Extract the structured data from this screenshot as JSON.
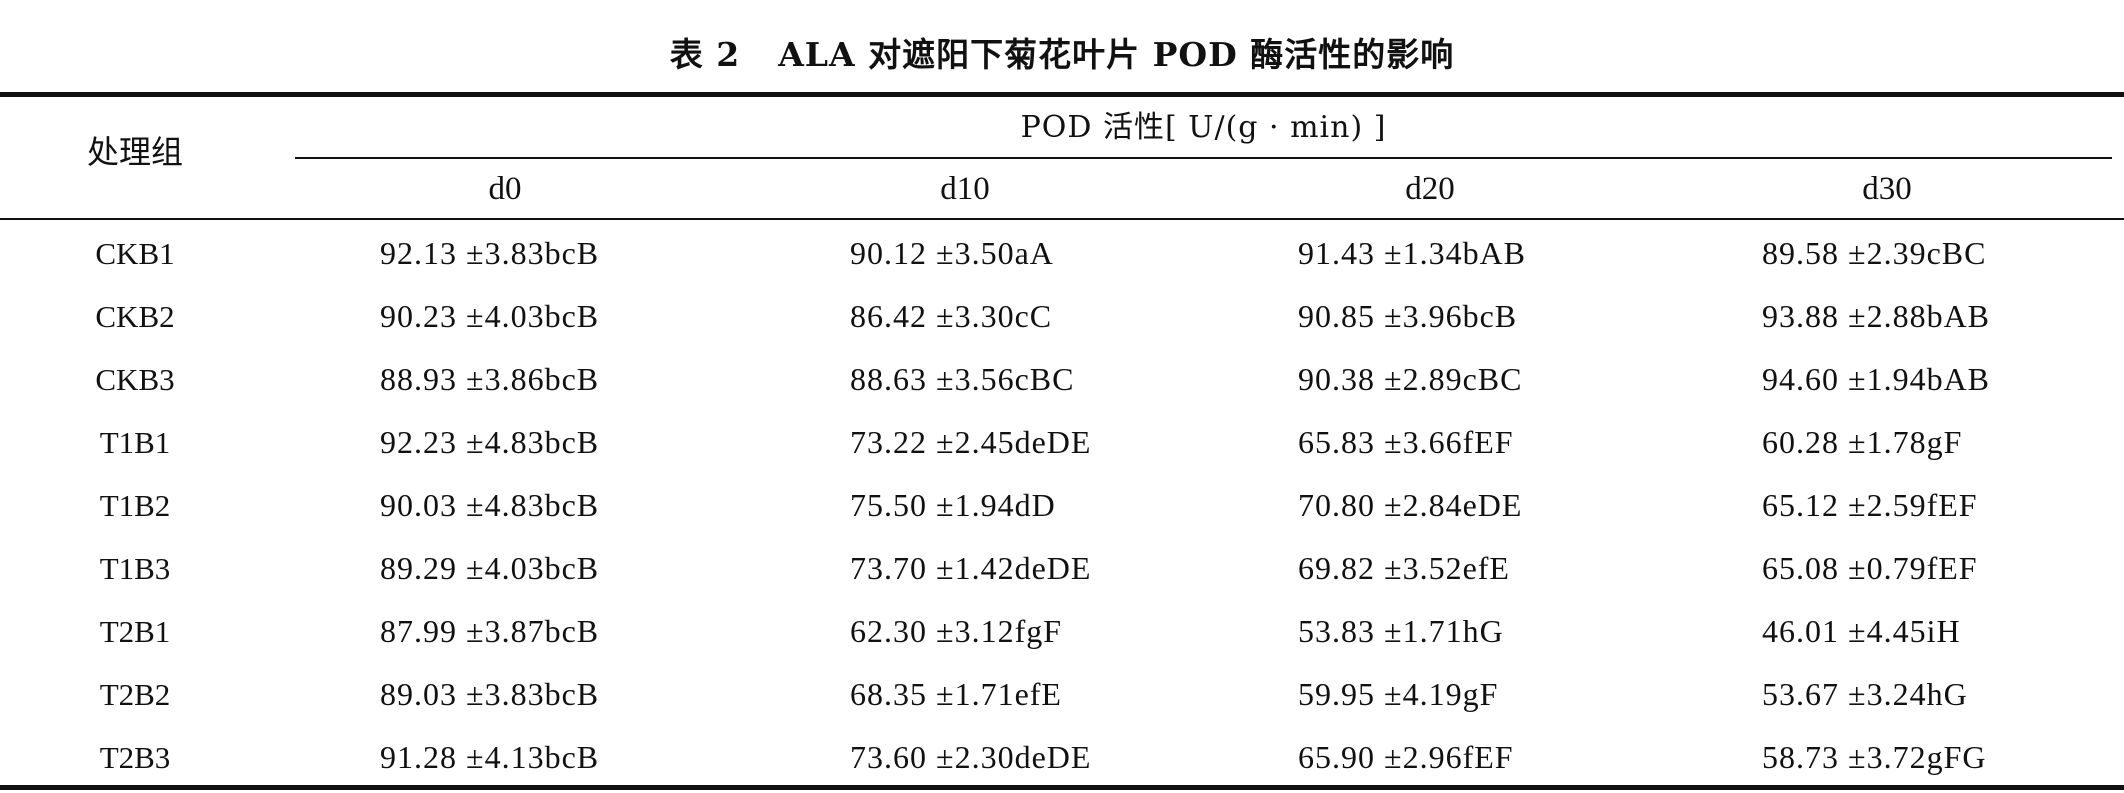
{
  "table": {
    "caption_number": "表 2",
    "caption_text": "ALA 对遮阳下菊花叶片 POD 酶活性的影响",
    "stub_header": "处理组",
    "group_header": "POD 活性[ U/(g · min) ]",
    "columns": [
      "d0",
      "d10",
      "d20",
      "d30"
    ],
    "rows": [
      {
        "label": "CKB1",
        "cells": [
          "92.13 ±3.83bcB",
          "90.12 ±3.50aA",
          "91.43 ±1.34bAB",
          "89.58 ±2.39cBC"
        ]
      },
      {
        "label": "CKB2",
        "cells": [
          "90.23 ±4.03bcB",
          "86.42 ±3.30cC",
          "90.85 ±3.96bcB",
          "93.88 ±2.88bAB"
        ]
      },
      {
        "label": "CKB3",
        "cells": [
          "88.93 ±3.86bcB",
          "88.63 ±3.56cBC",
          "90.38 ±2.89cBC",
          "94.60 ±1.94bAB"
        ]
      },
      {
        "label": "T1B1",
        "cells": [
          "92.23 ±4.83bcB",
          "73.22 ±2.45deDE",
          "65.83 ±3.66fEF",
          "60.28 ±1.78gF"
        ]
      },
      {
        "label": "T1B2",
        "cells": [
          "90.03 ±4.83bcB",
          "75.50 ±1.94dD",
          "70.80 ±2.84eDE",
          "65.12 ±2.59fEF"
        ]
      },
      {
        "label": "T1B3",
        "cells": [
          "89.29 ±4.03bcB",
          "73.70 ±1.42deDE",
          "69.82 ±3.52efE",
          "65.08 ±0.79fEF"
        ]
      },
      {
        "label": "T2B1",
        "cells": [
          "87.99 ±3.87bcB",
          "62.30 ±3.12fgF",
          "53.83 ±1.71hG",
          "46.01 ±4.45iH"
        ]
      },
      {
        "label": "T2B2",
        "cells": [
          "89.03 ±3.83bcB",
          "68.35 ±1.71efE",
          "59.95 ±4.19gF",
          "53.67 ±3.24hG"
        ]
      },
      {
        "label": "T2B3",
        "cells": [
          "91.28 ±4.13bcB",
          "73.60 ±2.30deDE",
          "65.90 ±2.96fEF",
          "58.73 ±3.72gFG"
        ]
      }
    ]
  }
}
